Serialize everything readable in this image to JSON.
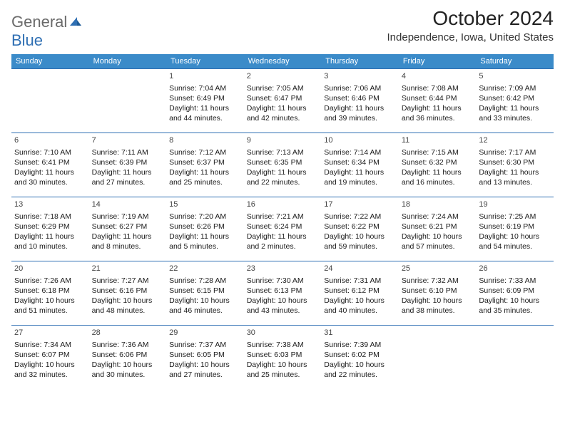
{
  "logo": {
    "part1": "General",
    "part2": "Blue"
  },
  "title": "October 2024",
  "location": "Independence, Iowa, United States",
  "colors": {
    "header_bg": "#3b8bc9",
    "header_text": "#ffffff",
    "border": "#2f6fb3",
    "logo_gray": "#6a6a6a",
    "logo_blue": "#2f6fb3",
    "text": "#1a1a1a"
  },
  "daysOfWeek": [
    "Sunday",
    "Monday",
    "Tuesday",
    "Wednesday",
    "Thursday",
    "Friday",
    "Saturday"
  ],
  "weeks": [
    [
      null,
      null,
      {
        "n": "1",
        "sr": "Sunrise: 7:04 AM",
        "ss": "Sunset: 6:49 PM",
        "d1": "Daylight: 11 hours",
        "d2": "and 44 minutes."
      },
      {
        "n": "2",
        "sr": "Sunrise: 7:05 AM",
        "ss": "Sunset: 6:47 PM",
        "d1": "Daylight: 11 hours",
        "d2": "and 42 minutes."
      },
      {
        "n": "3",
        "sr": "Sunrise: 7:06 AM",
        "ss": "Sunset: 6:46 PM",
        "d1": "Daylight: 11 hours",
        "d2": "and 39 minutes."
      },
      {
        "n": "4",
        "sr": "Sunrise: 7:08 AM",
        "ss": "Sunset: 6:44 PM",
        "d1": "Daylight: 11 hours",
        "d2": "and 36 minutes."
      },
      {
        "n": "5",
        "sr": "Sunrise: 7:09 AM",
        "ss": "Sunset: 6:42 PM",
        "d1": "Daylight: 11 hours",
        "d2": "and 33 minutes."
      }
    ],
    [
      {
        "n": "6",
        "sr": "Sunrise: 7:10 AM",
        "ss": "Sunset: 6:41 PM",
        "d1": "Daylight: 11 hours",
        "d2": "and 30 minutes."
      },
      {
        "n": "7",
        "sr": "Sunrise: 7:11 AM",
        "ss": "Sunset: 6:39 PM",
        "d1": "Daylight: 11 hours",
        "d2": "and 27 minutes."
      },
      {
        "n": "8",
        "sr": "Sunrise: 7:12 AM",
        "ss": "Sunset: 6:37 PM",
        "d1": "Daylight: 11 hours",
        "d2": "and 25 minutes."
      },
      {
        "n": "9",
        "sr": "Sunrise: 7:13 AM",
        "ss": "Sunset: 6:35 PM",
        "d1": "Daylight: 11 hours",
        "d2": "and 22 minutes."
      },
      {
        "n": "10",
        "sr": "Sunrise: 7:14 AM",
        "ss": "Sunset: 6:34 PM",
        "d1": "Daylight: 11 hours",
        "d2": "and 19 minutes."
      },
      {
        "n": "11",
        "sr": "Sunrise: 7:15 AM",
        "ss": "Sunset: 6:32 PM",
        "d1": "Daylight: 11 hours",
        "d2": "and 16 minutes."
      },
      {
        "n": "12",
        "sr": "Sunrise: 7:17 AM",
        "ss": "Sunset: 6:30 PM",
        "d1": "Daylight: 11 hours",
        "d2": "and 13 minutes."
      }
    ],
    [
      {
        "n": "13",
        "sr": "Sunrise: 7:18 AM",
        "ss": "Sunset: 6:29 PM",
        "d1": "Daylight: 11 hours",
        "d2": "and 10 minutes."
      },
      {
        "n": "14",
        "sr": "Sunrise: 7:19 AM",
        "ss": "Sunset: 6:27 PM",
        "d1": "Daylight: 11 hours",
        "d2": "and 8 minutes."
      },
      {
        "n": "15",
        "sr": "Sunrise: 7:20 AM",
        "ss": "Sunset: 6:26 PM",
        "d1": "Daylight: 11 hours",
        "d2": "and 5 minutes."
      },
      {
        "n": "16",
        "sr": "Sunrise: 7:21 AM",
        "ss": "Sunset: 6:24 PM",
        "d1": "Daylight: 11 hours",
        "d2": "and 2 minutes."
      },
      {
        "n": "17",
        "sr": "Sunrise: 7:22 AM",
        "ss": "Sunset: 6:22 PM",
        "d1": "Daylight: 10 hours",
        "d2": "and 59 minutes."
      },
      {
        "n": "18",
        "sr": "Sunrise: 7:24 AM",
        "ss": "Sunset: 6:21 PM",
        "d1": "Daylight: 10 hours",
        "d2": "and 57 minutes."
      },
      {
        "n": "19",
        "sr": "Sunrise: 7:25 AM",
        "ss": "Sunset: 6:19 PM",
        "d1": "Daylight: 10 hours",
        "d2": "and 54 minutes."
      }
    ],
    [
      {
        "n": "20",
        "sr": "Sunrise: 7:26 AM",
        "ss": "Sunset: 6:18 PM",
        "d1": "Daylight: 10 hours",
        "d2": "and 51 minutes."
      },
      {
        "n": "21",
        "sr": "Sunrise: 7:27 AM",
        "ss": "Sunset: 6:16 PM",
        "d1": "Daylight: 10 hours",
        "d2": "and 48 minutes."
      },
      {
        "n": "22",
        "sr": "Sunrise: 7:28 AM",
        "ss": "Sunset: 6:15 PM",
        "d1": "Daylight: 10 hours",
        "d2": "and 46 minutes."
      },
      {
        "n": "23",
        "sr": "Sunrise: 7:30 AM",
        "ss": "Sunset: 6:13 PM",
        "d1": "Daylight: 10 hours",
        "d2": "and 43 minutes."
      },
      {
        "n": "24",
        "sr": "Sunrise: 7:31 AM",
        "ss": "Sunset: 6:12 PM",
        "d1": "Daylight: 10 hours",
        "d2": "and 40 minutes."
      },
      {
        "n": "25",
        "sr": "Sunrise: 7:32 AM",
        "ss": "Sunset: 6:10 PM",
        "d1": "Daylight: 10 hours",
        "d2": "and 38 minutes."
      },
      {
        "n": "26",
        "sr": "Sunrise: 7:33 AM",
        "ss": "Sunset: 6:09 PM",
        "d1": "Daylight: 10 hours",
        "d2": "and 35 minutes."
      }
    ],
    [
      {
        "n": "27",
        "sr": "Sunrise: 7:34 AM",
        "ss": "Sunset: 6:07 PM",
        "d1": "Daylight: 10 hours",
        "d2": "and 32 minutes."
      },
      {
        "n": "28",
        "sr": "Sunrise: 7:36 AM",
        "ss": "Sunset: 6:06 PM",
        "d1": "Daylight: 10 hours",
        "d2": "and 30 minutes."
      },
      {
        "n": "29",
        "sr": "Sunrise: 7:37 AM",
        "ss": "Sunset: 6:05 PM",
        "d1": "Daylight: 10 hours",
        "d2": "and 27 minutes."
      },
      {
        "n": "30",
        "sr": "Sunrise: 7:38 AM",
        "ss": "Sunset: 6:03 PM",
        "d1": "Daylight: 10 hours",
        "d2": "and 25 minutes."
      },
      {
        "n": "31",
        "sr": "Sunrise: 7:39 AM",
        "ss": "Sunset: 6:02 PM",
        "d1": "Daylight: 10 hours",
        "d2": "and 22 minutes."
      },
      null,
      null
    ]
  ]
}
